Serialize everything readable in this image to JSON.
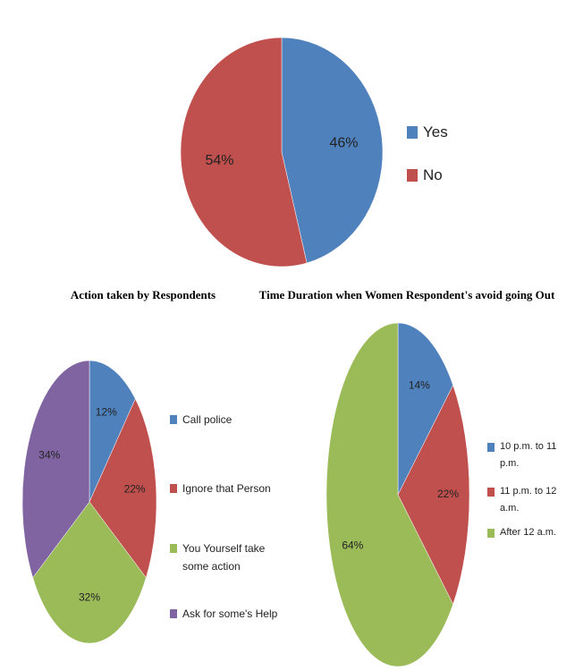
{
  "chart_data": [
    {
      "type": "pie",
      "categories": [
        "Yes",
        "No"
      ],
      "values": [
        46,
        54
      ],
      "value_labels": [
        "46%",
        "54%"
      ],
      "colors": [
        "#4f81bd",
        "#c0504d"
      ]
    },
    {
      "type": "pie",
      "title": "Action taken by Respondents",
      "categories": [
        "Call police",
        "Ignore that Person",
        "You Yourself take some action",
        "Ask for some's Help"
      ],
      "values": [
        12,
        22,
        32,
        34
      ],
      "value_labels": [
        "12%",
        "22%",
        "32%",
        "34%"
      ],
      "colors": [
        "#4f81bd",
        "#c0504d",
        "#9bbb59",
        "#8064a2"
      ]
    },
    {
      "type": "pie",
      "title": "Time Duration when Women Respondent's avoid going Out",
      "categories": [
        "10 p.m. to 11 p.m.",
        "11 p.m. to 12 a.m.",
        "After 12 a.m."
      ],
      "values": [
        14,
        22,
        64
      ],
      "value_labels": [
        "14%",
        "22%",
        "64%"
      ],
      "colors": [
        "#4f81bd",
        "#c0504d",
        "#9bbb59"
      ]
    }
  ]
}
